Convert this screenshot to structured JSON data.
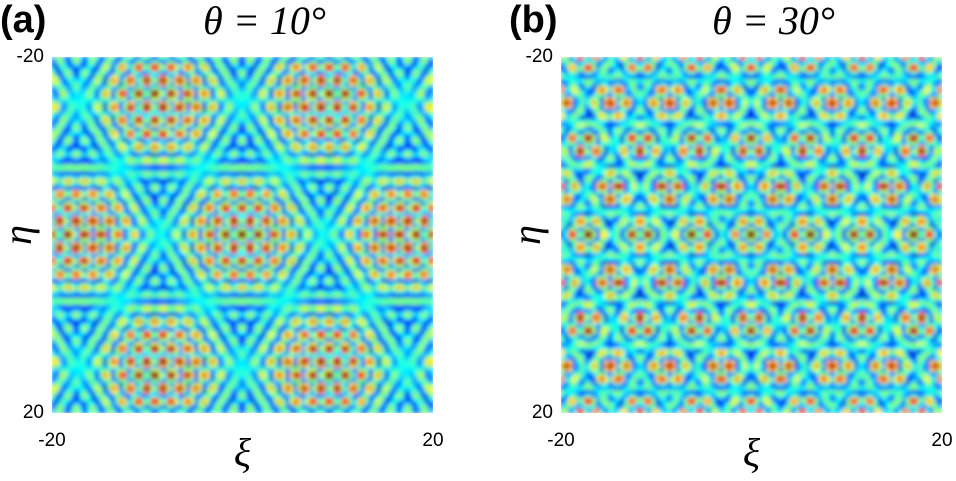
{
  "chart_data": [
    {
      "type": "heatmap",
      "panel_label": "(a)",
      "angle": {
        "value": 10,
        "label": "θ = 10°"
      },
      "xlabel": "ξ",
      "ylabel": "η",
      "xlim": [
        -20,
        20
      ],
      "ylim": [
        -20,
        20
      ],
      "xticks": [
        -20,
        20
      ],
      "yticks": [
        -20,
        20
      ],
      "y_reversed": true,
      "colormap": "jet"
    },
    {
      "type": "heatmap",
      "panel_label": "(b)",
      "angle": {
        "value": 30,
        "label": "θ = 30°"
      },
      "xlabel": "ξ",
      "ylabel": "η",
      "xlim": [
        -20,
        20
      ],
      "ylim": [
        -20,
        20
      ],
      "xticks": [
        -20,
        20
      ],
      "yticks": [
        -20,
        20
      ],
      "y_reversed": true,
      "colormap": "jet"
    }
  ]
}
